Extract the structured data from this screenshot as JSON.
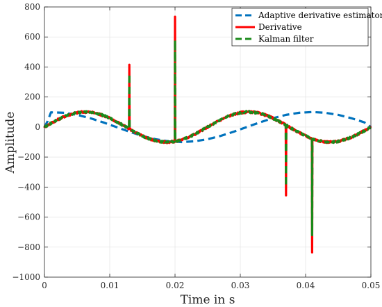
{
  "chart_data": {
    "type": "line",
    "title": "",
    "xlabel": "Time in s",
    "ylabel": "Amplitude",
    "xlim": [
      0,
      0.05
    ],
    "ylim": [
      -1000,
      800
    ],
    "xticks": [
      0,
      0.01,
      0.02,
      0.03,
      0.04,
      0.05
    ],
    "xtick_labels": [
      "0",
      "0.01",
      "0.02",
      "0.03",
      "0.04",
      "0.05"
    ],
    "yticks": [
      -1000,
      -800,
      -600,
      -400,
      -200,
      0,
      200,
      400,
      600,
      800
    ],
    "ytick_labels": [
      "−1000",
      "−800",
      "−600",
      "−400",
      "−200",
      "0",
      "200",
      "400",
      "600",
      "800"
    ],
    "grid": true,
    "legend_position": "top-right",
    "base_signal": {
      "amplitude": 100,
      "frequency_hz": 40,
      "phase_shift_s": 0.00625
    },
    "series": [
      {
        "name": "Adaptive derivative estimator",
        "color": "#0072BD",
        "style": "dashed",
        "spikes": [],
        "x": [
          0,
          0.0005,
          0.001,
          0.003,
          0.005,
          0.007,
          0.009,
          0.011,
          0.013,
          0.015,
          0.017,
          0.019,
          0.021,
          0.023,
          0.025,
          0.027,
          0.029,
          0.031,
          0.033,
          0.035,
          0.037,
          0.039,
          0.041,
          0.043,
          0.045,
          0.047,
          0.049,
          0.05
        ],
        "y": [
          0,
          40,
          98,
          95,
          81,
          59,
          31,
          0,
          -31,
          -59,
          -81,
          -95,
          -100,
          -95,
          -81,
          -59,
          -31,
          0,
          31,
          59,
          81,
          95,
          100,
          95,
          81,
          59,
          31,
          0
        ]
      },
      {
        "name": "Derivative",
        "color": "#FF0000",
        "style": "solid",
        "spikes": [
          {
            "t": 0.013,
            "v": 415
          },
          {
            "t": 0.02,
            "v": 735
          },
          {
            "t": 0.037,
            "v": -455
          },
          {
            "t": 0.041,
            "v": -835
          }
        ]
      },
      {
        "name": "Kalman filter",
        "color": "#1A8A1A",
        "style": "dashed",
        "spikes": [
          {
            "t": 0.013,
            "v": 355
          },
          {
            "t": 0.02,
            "v": 580
          },
          {
            "t": 0.037,
            "v": -395
          },
          {
            "t": 0.041,
            "v": -720
          }
        ]
      }
    ]
  }
}
